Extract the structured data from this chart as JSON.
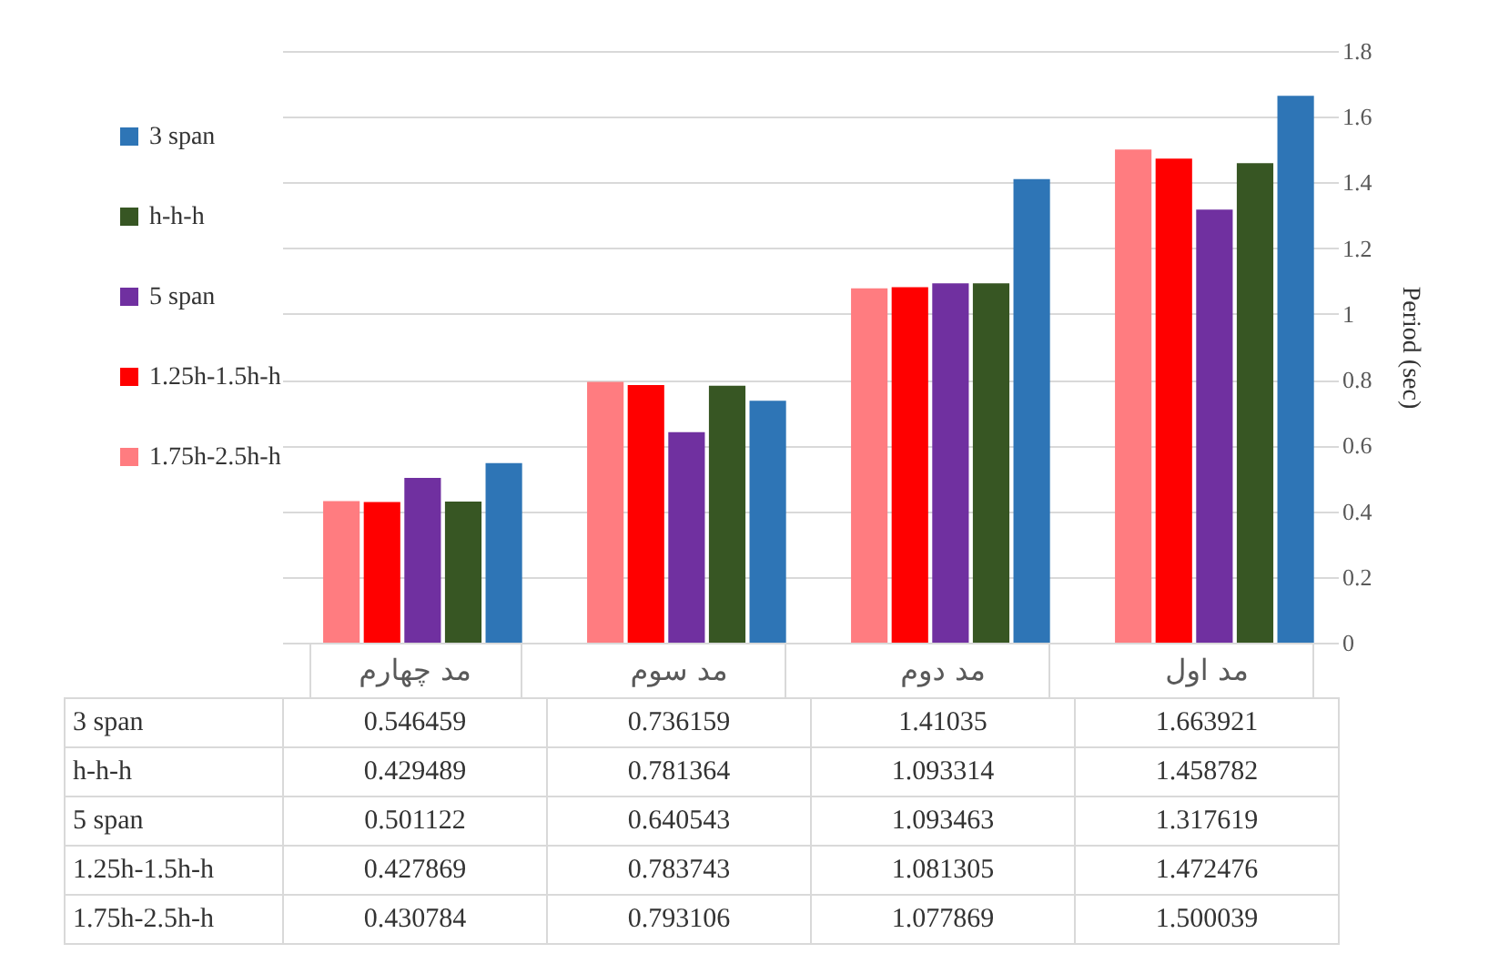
{
  "chart_data": {
    "type": "bar",
    "categories": [
      "مد چهارم",
      "مد سوم",
      "مد دوم",
      "مد اول"
    ],
    "series": [
      {
        "name": "1.75h-2.5h-h",
        "color": "#ff7c80",
        "values": [
          0.430784,
          0.793106,
          1.077869,
          1.500039
        ]
      },
      {
        "name": "1.25h-1.5h-h",
        "color": "#ff0000",
        "values": [
          0.427869,
          0.783743,
          1.081305,
          1.472476
        ]
      },
      {
        "name": "5 span",
        "color": "#7030a0",
        "values": [
          0.501122,
          0.640543,
          1.093463,
          1.317619
        ]
      },
      {
        "name": "h-h-h",
        "color": "#375623",
        "values": [
          0.429489,
          0.781364,
          1.093314,
          1.458782
        ]
      },
      {
        "name": "3 span",
        "color": "#2e75b6",
        "values": [
          0.546459,
          0.736159,
          1.41035,
          1.663921
        ]
      }
    ],
    "ylabel": "Period (sec)",
    "ylim": [
      0,
      1.8
    ],
    "yticks": [
      0,
      0.2,
      0.4,
      0.6,
      0.8,
      1,
      1.2,
      1.4,
      1.6,
      1.8
    ],
    "grid": "y",
    "legend": "left",
    "data_labels": true
  }
}
